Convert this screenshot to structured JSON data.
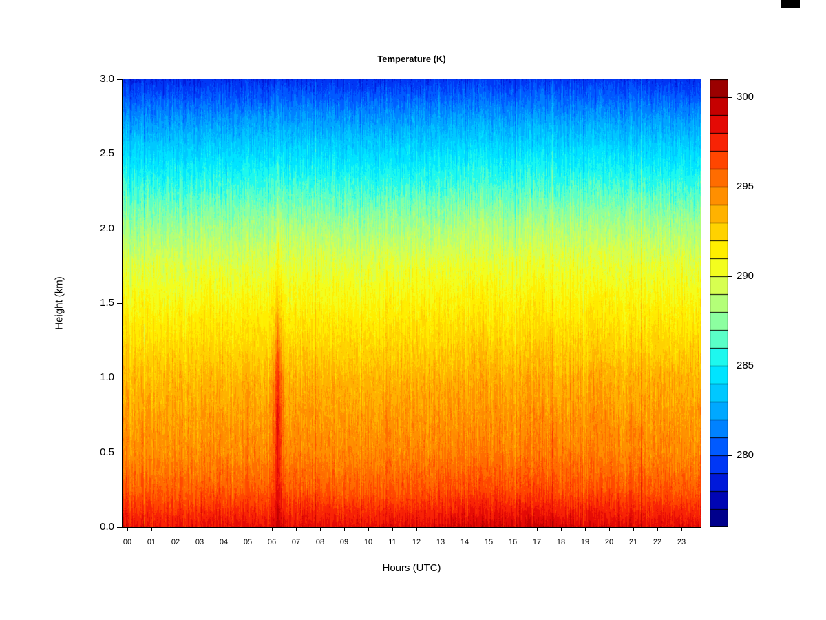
{
  "chart_data": {
    "type": "heatmap",
    "title": "Temperature (K)",
    "xlabel": "Hours (UTC)",
    "ylabel": "Height (km)",
    "x_range": [
      0,
      24
    ],
    "y_range": [
      0,
      3
    ],
    "grid_on": false,
    "x_tick_labels": [
      "00",
      "01",
      "02",
      "03",
      "04",
      "05",
      "06",
      "07",
      "08",
      "09",
      "10",
      "11",
      "12",
      "13",
      "14",
      "15",
      "16",
      "17",
      "18",
      "19",
      "20",
      "21",
      "22",
      "23"
    ],
    "y_tick_labels": [
      "0.0",
      "0.5",
      "1.0",
      "1.5",
      "2.0",
      "2.5",
      "3.0"
    ],
    "colorbar": {
      "position": "right",
      "range": [
        276,
        301
      ],
      "step": 1,
      "tick_values": [
        280,
        285,
        290,
        295,
        300
      ],
      "tick_labels": [
        "280",
        "285",
        "290",
        "295",
        "300"
      ]
    },
    "colormap_stops": [
      [
        276,
        "#000078"
      ],
      [
        277,
        "#0000A0"
      ],
      [
        278,
        "#000AC8"
      ],
      [
        279,
        "#0028EB"
      ],
      [
        280,
        "#0046FF"
      ],
      [
        281,
        "#006EFF"
      ],
      [
        282,
        "#0096FF"
      ],
      [
        283,
        "#00B9FF"
      ],
      [
        284,
        "#00D7FF"
      ],
      [
        285,
        "#00F0FF"
      ],
      [
        286,
        "#3CFFDC"
      ],
      [
        287,
        "#78FFB4"
      ],
      [
        288,
        "#A0FF8C"
      ],
      [
        289,
        "#C8FF64"
      ],
      [
        290,
        "#E6FF3C"
      ],
      [
        291,
        "#FFFA00"
      ],
      [
        292,
        "#FFE100"
      ],
      [
        293,
        "#FFC300"
      ],
      [
        294,
        "#FFA000"
      ],
      [
        295,
        "#FF7D00"
      ],
      [
        296,
        "#FF5A00"
      ],
      [
        297,
        "#FF3200"
      ],
      [
        298,
        "#F0140A"
      ],
      [
        299,
        "#D70000"
      ],
      [
        300,
        "#B40000"
      ],
      [
        301,
        "#820000"
      ]
    ],
    "grid": {
      "hours": [
        0,
        1,
        2,
        3,
        4,
        5,
        6,
        7,
        8,
        9,
        10,
        11,
        12,
        13,
        14,
        15,
        16,
        17,
        18,
        19,
        20,
        21,
        22,
        23
      ],
      "heights": [
        0.0,
        0.25,
        0.5,
        0.75,
        1.0,
        1.25,
        1.5,
        1.75,
        2.0,
        2.25,
        2.5,
        2.75,
        3.0
      ],
      "values": [
        [
          298.3,
          298.2,
          298.2,
          298.3,
          298.2,
          298.3,
          298.4,
          298.4,
          298.3,
          298.3,
          298.4,
          298.5,
          298.6,
          298.8,
          299.0,
          299.1,
          299.2,
          299.1,
          298.9,
          298.8,
          298.7,
          298.6,
          298.5,
          298.4
        ],
        [
          296.0,
          295.9,
          295.9,
          296.0,
          295.9,
          296.0,
          296.1,
          296.1,
          296.0,
          296.0,
          296.1,
          296.1,
          296.2,
          296.3,
          296.4,
          296.5,
          296.5,
          296.4,
          296.3,
          296.2,
          296.1,
          296.1,
          296.0,
          296.0
        ],
        [
          294.7,
          294.6,
          294.6,
          294.7,
          294.6,
          294.7,
          294.8,
          294.8,
          294.7,
          294.7,
          294.8,
          294.8,
          294.9,
          295.0,
          295.0,
          295.1,
          295.1,
          295.0,
          295.0,
          294.9,
          294.8,
          294.8,
          294.7,
          294.7
        ],
        [
          294.1,
          294.0,
          294.0,
          294.1,
          294.0,
          294.1,
          294.2,
          294.2,
          294.1,
          294.1,
          294.2,
          294.2,
          294.3,
          294.3,
          294.4,
          294.4,
          294.4,
          294.4,
          294.3,
          294.3,
          294.2,
          294.2,
          294.1,
          294.1
        ],
        [
          293.4,
          293.3,
          293.3,
          293.4,
          293.3,
          293.4,
          293.5,
          293.5,
          293.4,
          293.4,
          293.5,
          293.5,
          293.6,
          293.6,
          293.7,
          293.7,
          293.7,
          293.7,
          293.6,
          293.6,
          293.5,
          293.5,
          293.4,
          293.4
        ],
        [
          292.2,
          292.1,
          292.1,
          292.2,
          292.1,
          292.2,
          292.3,
          292.3,
          292.2,
          292.2,
          292.3,
          292.3,
          292.4,
          292.4,
          292.5,
          292.5,
          292.5,
          292.5,
          292.4,
          292.4,
          292.3,
          292.3,
          292.2,
          292.2
        ],
        [
          291.1,
          291.0,
          291.0,
          291.1,
          291.0,
          291.1,
          291.2,
          291.2,
          291.1,
          291.1,
          291.2,
          291.2,
          291.3,
          291.3,
          291.4,
          291.4,
          291.4,
          291.4,
          291.3,
          291.3,
          291.2,
          291.2,
          291.1,
          291.1
        ],
        [
          289.9,
          289.8,
          289.8,
          289.9,
          289.8,
          289.9,
          290.0,
          290.0,
          289.9,
          289.9,
          290.0,
          290.0,
          290.1,
          290.1,
          290.2,
          290.2,
          290.2,
          290.2,
          290.1,
          290.1,
          290.0,
          290.0,
          289.9,
          289.9
        ],
        [
          288.2,
          288.1,
          288.1,
          288.2,
          288.1,
          288.2,
          288.3,
          288.3,
          288.2,
          288.2,
          288.3,
          288.3,
          288.4,
          288.4,
          288.5,
          288.5,
          288.5,
          288.5,
          288.4,
          288.4,
          288.3,
          288.3,
          288.2,
          288.2
        ],
        [
          286.2,
          286.1,
          286.1,
          286.2,
          286.1,
          286.2,
          286.3,
          286.3,
          286.2,
          286.2,
          286.3,
          286.3,
          286.4,
          286.4,
          286.5,
          286.5,
          286.5,
          286.5,
          286.4,
          286.4,
          286.3,
          286.3,
          286.2,
          286.2
        ],
        [
          284.2,
          284.1,
          284.1,
          284.2,
          284.1,
          284.2,
          284.3,
          284.3,
          284.2,
          284.2,
          284.3,
          284.3,
          284.4,
          284.4,
          284.5,
          284.5,
          284.5,
          284.5,
          284.4,
          284.4,
          284.3,
          284.3,
          284.2,
          284.2
        ],
        [
          281.9,
          281.8,
          281.8,
          281.9,
          281.8,
          281.9,
          282.0,
          282.0,
          281.9,
          281.9,
          282.0,
          282.0,
          282.1,
          282.1,
          282.2,
          282.2,
          282.2,
          282.2,
          282.1,
          282.1,
          282.0,
          282.0,
          281.9,
          281.9
        ],
        [
          279.2,
          279.1,
          279.1,
          279.2,
          279.1,
          279.2,
          279.3,
          279.3,
          279.2,
          279.2,
          279.3,
          279.3,
          279.4,
          279.4,
          279.5,
          279.5,
          279.5,
          279.5,
          279.4,
          279.4,
          279.3,
          279.3,
          279.2,
          279.2
        ]
      ]
    },
    "warm_plume": {
      "hour_center": 6.45,
      "hour_sigma": 0.13,
      "amplitude": 3.2,
      "height_center": 0.8,
      "height_sigma": 0.5,
      "streak_amplitude": 1.2,
      "streak_sigma": 0.05
    }
  }
}
